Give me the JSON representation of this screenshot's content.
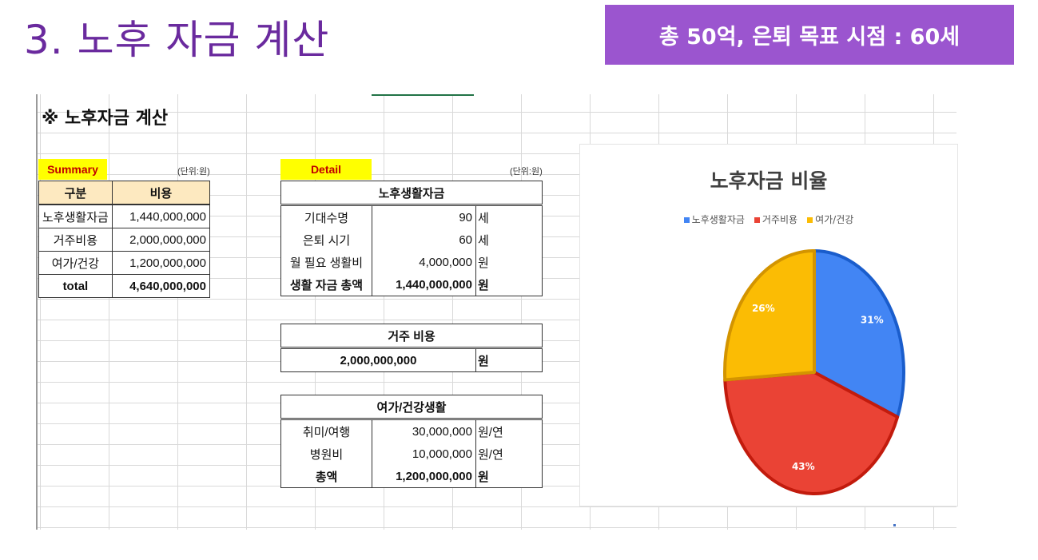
{
  "slide": {
    "title": "3. 노후 자금 계산",
    "goal": "총 50억, 은퇴 목표 시점 : 60세"
  },
  "sheet": {
    "heading": "※ 노후자금 계산",
    "summary": {
      "label": "Summary",
      "unit": "(단위:원)",
      "headers": [
        "구분",
        "비용"
      ],
      "rows": [
        [
          "노후생활자금",
          "1,440,000,000"
        ],
        [
          "거주비용",
          "2,000,000,000"
        ],
        [
          "여가/건강",
          "1,200,000,000"
        ],
        [
          "total",
          "4,640,000,000"
        ]
      ]
    },
    "detail": {
      "label": "Detail",
      "unit": "(단위:원)",
      "living": {
        "title": "노후생활자금",
        "rows": [
          [
            "기대수명",
            "90",
            "세"
          ],
          [
            "은퇴 시기",
            "60",
            "세"
          ],
          [
            "월 필요 생활비",
            "4,000,000",
            "원"
          ],
          [
            "생활 자금 총액",
            "1,440,000,000",
            "원"
          ]
        ]
      },
      "housing": {
        "title": "거주 비용",
        "value": "2,000,000,000",
        "unit": "원"
      },
      "leisure": {
        "title": "여가/건강생활",
        "rows": [
          [
            "취미/여행",
            "30,000,000",
            "원/연"
          ],
          [
            "병원비",
            "10,000,000",
            "원/연"
          ],
          [
            "총액",
            "1,200,000,000",
            "원"
          ]
        ]
      }
    }
  },
  "chart_data": {
    "type": "pie",
    "title": "노후자금 비율",
    "legend_position": "top",
    "categories": [
      "노후생활자금",
      "거주비용",
      "여가/건강"
    ],
    "values": [
      31,
      43,
      26
    ],
    "labels": [
      "31%",
      "43%",
      "26%"
    ],
    "colors": [
      "#4285f4",
      "#ea4335",
      "#fbbc04"
    ]
  }
}
